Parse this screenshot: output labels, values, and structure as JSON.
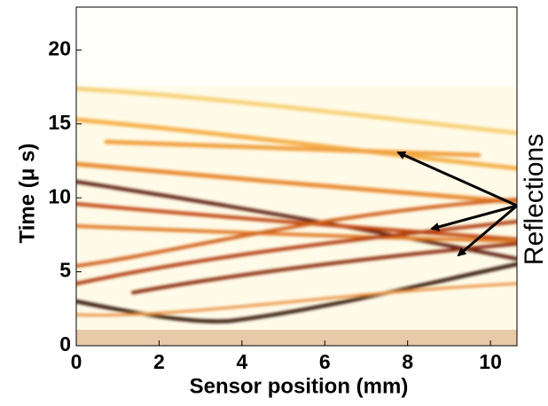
{
  "chart_data": {
    "type": "heatmap",
    "xlabel": "Sensor position (mm)",
    "ylabel": "Time (μ s)",
    "xlim": [
      0,
      10.64
    ],
    "ylim": [
      0,
      22.9
    ],
    "xticks": [
      0,
      2,
      4,
      6,
      8,
      10
    ],
    "yticks": [
      0,
      5,
      10,
      15,
      20
    ],
    "annotation": "Reflections"
  }
}
